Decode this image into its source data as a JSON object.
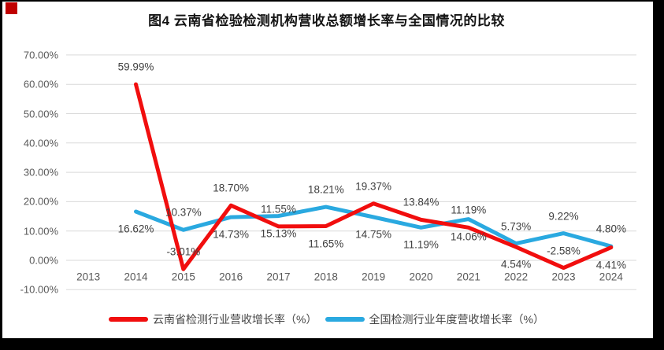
{
  "page": {
    "title": "图4 云南省检验检测机构营收总额增长率与全国情况的比较"
  },
  "decor": {
    "frame_border_color": "#000000",
    "corner_mark_color": "#c00000",
    "background_color": "#ffffff",
    "gridline_color": "#d9d9d9",
    "tick_text_color": "#595959",
    "data_label_color": "#404040"
  },
  "chart_data": {
    "type": "line",
    "title": "图4 云南省检验检测机构营收总额增长率与全国情况的比较",
    "categories": [
      "2013",
      "2014",
      "2015",
      "2016",
      "2017",
      "2018",
      "2019",
      "2020",
      "2021",
      "2022",
      "2023",
      "2024"
    ],
    "series": [
      {
        "name": "云南省检测行业营收增长率（%）",
        "color": "#f10e0e",
        "values": [
          null,
          59.99,
          -3.01,
          18.7,
          11.55,
          11.65,
          19.37,
          13.84,
          11.19,
          4.54,
          -2.58,
          4.41
        ],
        "labels": [
          null,
          "59.99%",
          "-3.01%",
          "18.70%",
          "11.55%",
          "11.65%",
          "19.37%",
          "13.84%",
          "11.19%",
          "4.54%",
          "-2.58%",
          "4.41%"
        ],
        "label_pos": [
          null,
          "above",
          "above",
          "above",
          "above",
          "below",
          "above",
          "above",
          "above",
          "below",
          "above",
          "below"
        ]
      },
      {
        "name": "全国检测行业年度营收增长率（%）",
        "color": "#2aa9e0",
        "values": [
          null,
          16.62,
          10.37,
          14.73,
          15.13,
          18.21,
          14.75,
          11.19,
          14.06,
          5.73,
          9.22,
          4.8
        ],
        "labels": [
          null,
          "16.62%",
          "10.37%",
          "14.73%",
          "15.13%",
          "18.21%",
          "14.75%",
          "11.19%",
          "14.06%",
          "5.73%",
          "9.22%",
          "4.80%"
        ],
        "label_pos": [
          null,
          "below",
          "above",
          "below",
          "below",
          "above",
          "below",
          "below",
          "below",
          "above",
          "above",
          "above"
        ]
      }
    ],
    "y_axis": {
      "min": -10,
      "max": 70,
      "step": 10
    },
    "y_tick_labels": [
      "70.00%",
      "60.00%",
      "50.00%",
      "40.00%",
      "30.00%",
      "20.00%",
      "10.00%",
      "0.00%",
      "-10.00%"
    ],
    "y_tick_values": [
      70,
      60,
      50,
      40,
      30,
      20,
      10,
      0,
      -10
    ],
    "grid": true,
    "legend_position": "bottom"
  }
}
